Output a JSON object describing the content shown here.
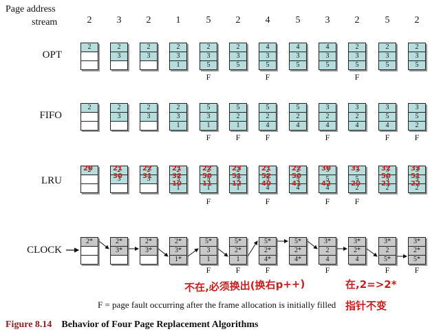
{
  "header": {
    "label_line1": "Page address",
    "label_line2": "stream",
    "stream": [
      "2",
      "3",
      "2",
      "1",
      "5",
      "2",
      "4",
      "5",
      "3",
      "2",
      "5",
      "2"
    ]
  },
  "algorithms": [
    {
      "name": "OPT",
      "frames": [
        [
          "2",
          "",
          ""
        ],
        [
          "2",
          "3",
          ""
        ],
        [
          "2",
          "3",
          ""
        ],
        [
          "2",
          "3",
          "1"
        ],
        [
          "2",
          "3",
          "5"
        ],
        [
          "2",
          "3",
          "5"
        ],
        [
          "4",
          "3",
          "5"
        ],
        [
          "4",
          "3",
          "5"
        ],
        [
          "4",
          "3",
          "5"
        ],
        [
          "2",
          "3",
          "5"
        ],
        [
          "2",
          "3",
          "5"
        ],
        [
          "2",
          "3",
          "5"
        ]
      ],
      "faults": [
        "",
        "",
        "",
        "",
        "F",
        "",
        "F",
        "",
        "",
        "F",
        "",
        ""
      ]
    },
    {
      "name": "FIFO",
      "frames": [
        [
          "2",
          "",
          ""
        ],
        [
          "2",
          "3",
          ""
        ],
        [
          "2",
          "3",
          ""
        ],
        [
          "2",
          "3",
          "1"
        ],
        [
          "5",
          "3",
          "1"
        ],
        [
          "5",
          "2",
          "1"
        ],
        [
          "5",
          "2",
          "4"
        ],
        [
          "5",
          "2",
          "4"
        ],
        [
          "3",
          "2",
          "4"
        ],
        [
          "3",
          "2",
          "4"
        ],
        [
          "3",
          "5",
          "4"
        ],
        [
          "3",
          "5",
          "2"
        ]
      ],
      "faults": [
        "",
        "",
        "",
        "",
        "F",
        "F",
        "F",
        "",
        "F",
        "",
        "F",
        "F"
      ]
    },
    {
      "name": "LRU",
      "frames": [
        [
          "2",
          "",
          ""
        ],
        [
          "2",
          "3",
          ""
        ],
        [
          "2",
          "3",
          ""
        ],
        [
          "2",
          "3",
          "1"
        ],
        [
          "2",
          "5",
          "1"
        ],
        [
          "2",
          "5",
          "1"
        ],
        [
          "2",
          "5",
          "4"
        ],
        [
          "2",
          "5",
          "4"
        ],
        [
          "3",
          "5",
          "4"
        ],
        [
          "3",
          "5",
          "2"
        ],
        [
          "3",
          "5",
          "2"
        ],
        [
          "3",
          "5",
          "2"
        ]
      ],
      "faults": [
        "",
        "",
        "",
        "",
        "F",
        "",
        "F",
        "",
        "F",
        "F",
        "",
        ""
      ]
    },
    {
      "name": "CLOCK",
      "frames": [
        [
          "2*",
          "",
          ""
        ],
        [
          "2*",
          "3*",
          ""
        ],
        [
          "2*",
          "3*",
          ""
        ],
        [
          "2*",
          "3*",
          "1*"
        ],
        [
          "5*",
          "3",
          "1"
        ],
        [
          "5*",
          "2*",
          "1"
        ],
        [
          "5*",
          "2*",
          "4*"
        ],
        [
          "5*",
          "2*",
          "4*"
        ],
        [
          "3*",
          "2",
          "4"
        ],
        [
          "3*",
          "2*",
          "4"
        ],
        [
          "3*",
          "2",
          "5*"
        ],
        [
          "3*",
          "2*",
          "5*"
        ]
      ],
      "faults": [
        "",
        "",
        "",
        "",
        "F",
        "F",
        "F",
        "",
        "F",
        "",
        "F",
        "F"
      ]
    }
  ],
  "lru_annotations": [
    [
      "20",
      "",
      ""
    ],
    [
      "21",
      "30",
      ""
    ],
    [
      "22",
      "31",
      ""
    ],
    [
      "21",
      "32",
      "10"
    ],
    [
      "22",
      "50",
      "11"
    ],
    [
      "23",
      "51",
      "12"
    ],
    [
      "21",
      "52",
      "40"
    ],
    [
      "22",
      "50",
      "41"
    ],
    [
      "30",
      "",
      "42"
    ],
    [
      "31",
      "",
      "20"
    ],
    [
      "32",
      "50",
      "21"
    ],
    [
      "33",
      "51",
      "22"
    ]
  ],
  "legend": "F = page fault occurring after the frame allocation is initially filled",
  "caption": {
    "number": "Figure 8.14",
    "title": "Behavior of Four Page Replacement Algorithms"
  },
  "handwritten": {
    "note_left": "不在,必须换出(换右p++)",
    "note_right_1": "在,2=>2*",
    "note_right_2": "指针不变"
  },
  "colors": {
    "frame_teal": "#b6dcdc",
    "frame_gray": "#c8c8c8",
    "caption_red": "#8b1f1f",
    "annotation_red": "#c81e1e"
  }
}
